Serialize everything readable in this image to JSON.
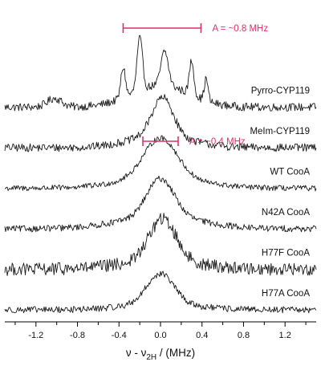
{
  "chart_data": {
    "type": "line",
    "xlabel": "ν - ν2H / (MHz)",
    "xlabel_parts": {
      "nu": "ν - ν",
      "sub": "2H",
      "unit": "/ (MHz)"
    },
    "xlim": [
      -1.5,
      1.5
    ],
    "x_ticks": [
      -1.2,
      -0.8,
      -0.4,
      0.0,
      0.4,
      0.8,
      1.2
    ],
    "x_tick_labels": [
      "-1.2",
      "-0.8",
      "-0.4",
      "0.0",
      "0.4",
      "0.8",
      "1.2"
    ],
    "grid": false,
    "legend": "labels on right of each trace",
    "series": [
      {
        "name": "Pyrro-CYP119",
        "baseline_offset": 5,
        "noise": 0.1,
        "peaks": [
          {
            "x": -0.36,
            "amp": 0.75,
            "w": 0.022
          },
          {
            "x": -0.2,
            "amp": 1.3,
            "w": 0.026
          },
          {
            "x": 0.04,
            "amp": 0.85,
            "w": 0.035
          },
          {
            "x": 0.3,
            "amp": 0.85,
            "w": 0.022
          },
          {
            "x": 0.44,
            "amp": 0.55,
            "w": 0.018
          },
          {
            "x": 0.0,
            "amp": 0.55,
            "w": 0.28
          },
          {
            "x": -1.02,
            "amp": 0.22,
            "w": 0.07
          }
        ]
      },
      {
        "name": "MeIm-CYP119",
        "baseline_offset": 4,
        "noise": 0.1,
        "peaks": [
          {
            "x": 0.02,
            "amp": 0.95,
            "w": 0.1
          },
          {
            "x": 0.0,
            "amp": 0.3,
            "w": 0.3
          }
        ]
      },
      {
        "name": "WT CooA",
        "baseline_offset": 3,
        "noise": 0.07,
        "peaks": [
          {
            "x": 0.0,
            "amp": 1.0,
            "w": 0.16
          },
          {
            "x": 0.0,
            "amp": 0.25,
            "w": 0.4
          }
        ]
      },
      {
        "name": "N42A CooA",
        "baseline_offset": 2,
        "noise": 0.08,
        "peaks": [
          {
            "x": 0.0,
            "amp": 0.95,
            "w": 0.13
          },
          {
            "x": 0.0,
            "amp": 0.3,
            "w": 0.4
          }
        ]
      },
      {
        "name": "H77F CooA",
        "baseline_offset": 1,
        "noise": 0.16,
        "peaks": [
          {
            "x": 0.02,
            "amp": 1.05,
            "w": 0.13
          },
          {
            "x": 0.0,
            "amp": 0.2,
            "w": 0.4
          }
        ]
      },
      {
        "name": "H77A CooA",
        "baseline_offset": 0,
        "noise": 0.08,
        "peaks": [
          {
            "x": 0.0,
            "amp": 0.75,
            "w": 0.13
          },
          {
            "x": 0.0,
            "amp": 0.15,
            "w": 0.35
          }
        ]
      }
    ],
    "annotations": [
      {
        "text": "A = ~0.8 MHz",
        "x_start": -0.36,
        "x_end": 0.39,
        "series": "Pyrro-CYP119"
      },
      {
        "text": "A = ~0.4 MHz",
        "x_start": -0.17,
        "x_end": 0.17,
        "series": "WT CooA"
      }
    ],
    "colors": {
      "trace": "#1a1a1a",
      "annotation": "#d6336c"
    }
  }
}
